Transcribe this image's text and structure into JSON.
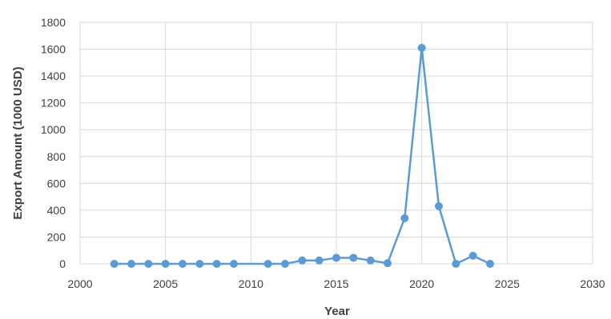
{
  "chart_data": {
    "type": "scatter",
    "title": "",
    "xlabel": "Year",
    "ylabel": "Export Amount (1000 USD)",
    "xlim": [
      2000,
      2030
    ],
    "ylim": [
      0,
      1800
    ],
    "xticks": [
      2000,
      2005,
      2010,
      2015,
      2020,
      2025,
      2030
    ],
    "yticks": [
      0,
      200,
      400,
      600,
      800,
      1000,
      1200,
      1400,
      1600,
      1800
    ],
    "grid": true,
    "legend": "none",
    "color": "#5b9bd5",
    "series": [
      {
        "x": [
          2002,
          2003,
          2004,
          2005,
          2006,
          2007,
          2008,
          2009,
          2011,
          2012,
          2013,
          2014,
          2015,
          2016,
          2017,
          2018,
          2019,
          2020,
          2021,
          2022,
          2023,
          2024
        ],
        "y": [
          0,
          0,
          0,
          0,
          0,
          0,
          0,
          0,
          0,
          0,
          25,
          25,
          45,
          45,
          25,
          5,
          340,
          1610,
          430,
          0,
          60,
          0
        ]
      }
    ]
  }
}
